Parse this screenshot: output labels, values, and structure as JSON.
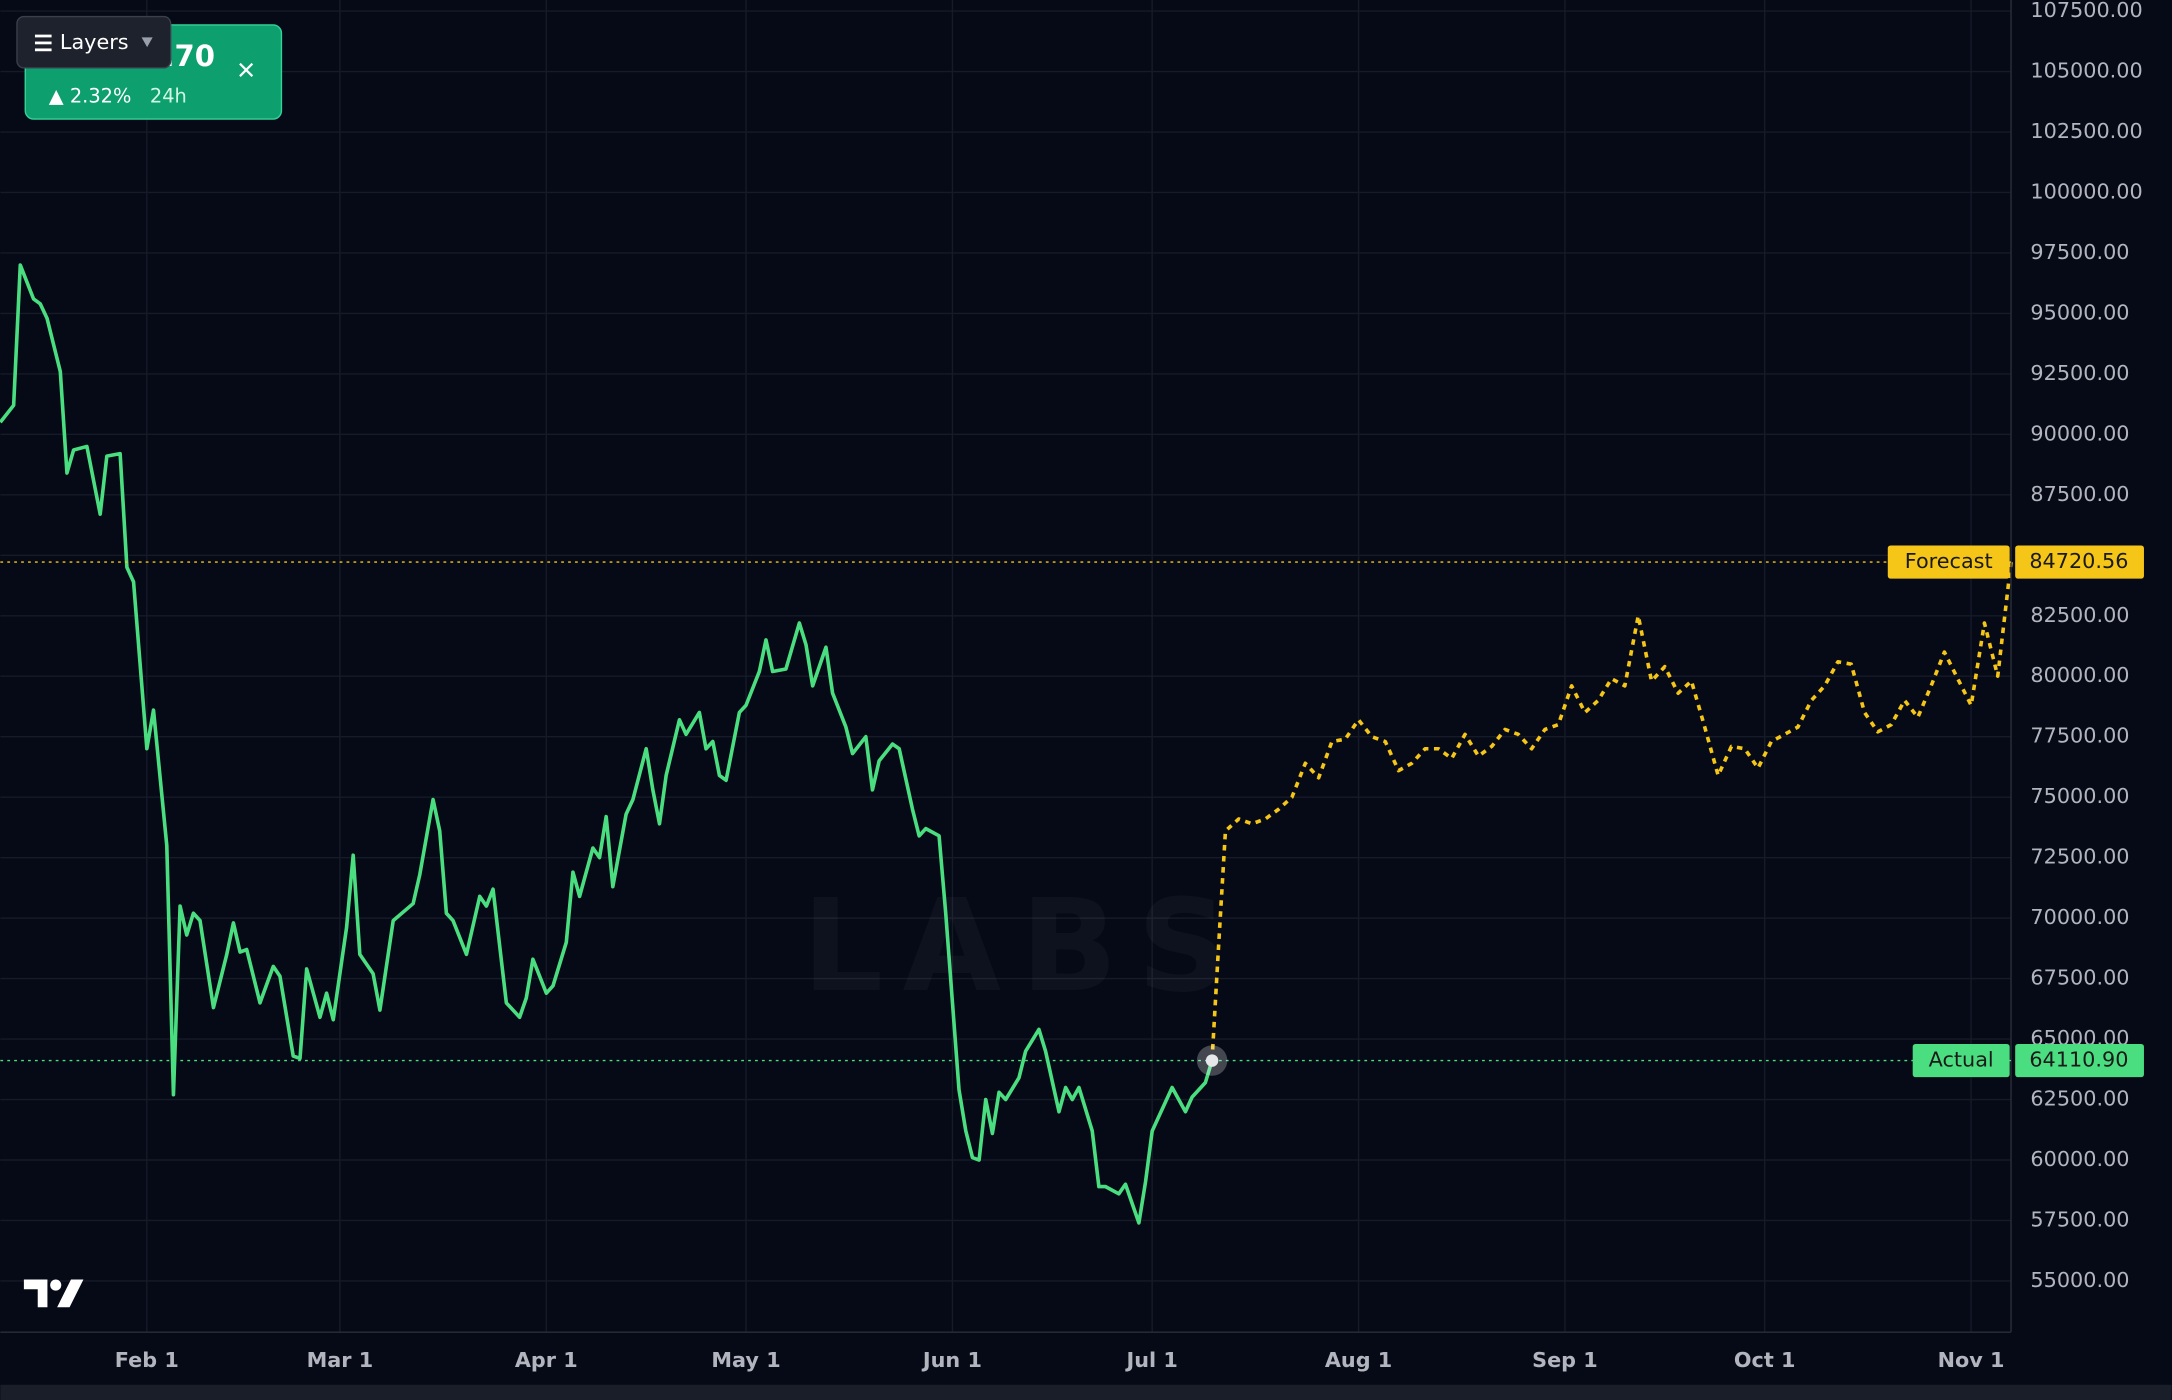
{
  "ui": {
    "layers": "Layers",
    "price": ".70",
    "change": "▲ 2.32%",
    "period": "24h",
    "watermark": "LABS"
  },
  "chart_data": {
    "type": "line",
    "xlim": [
      "Jan 10",
      "Nov 7"
    ],
    "xticks": [
      "Feb 1",
      "Mar 1",
      "Apr 1",
      "May 1",
      "Jun 1",
      "Jul 1",
      "Aug 1",
      "Sep 1",
      "Oct 1",
      "Nov 1"
    ],
    "ylim": [
      52883,
      107958
    ],
    "yticks": [
      {
        "value": 55000,
        "label": "55000.00"
      },
      {
        "value": 57500,
        "label": "57500.00"
      },
      {
        "value": 60000,
        "label": "60000.00"
      },
      {
        "value": 62500,
        "label": "62500.00"
      },
      {
        "value": 65000,
        "label": "65000.00"
      },
      {
        "value": 67500,
        "label": "67500.00"
      },
      {
        "value": 70000,
        "label": "70000.00"
      },
      {
        "value": 72500,
        "label": "72500.00"
      },
      {
        "value": 75000,
        "label": "75000.00"
      },
      {
        "value": 77500,
        "label": "77500.00"
      },
      {
        "value": 80000,
        "label": "80000.00"
      },
      {
        "value": 82500,
        "label": "82500.00"
      },
      {
        "value": 85000,
        "label": "85000.00"
      },
      {
        "value": 87500,
        "label": "87500.00"
      },
      {
        "value": 90000,
        "label": "90000.00"
      },
      {
        "value": 92500,
        "label": "92500.00"
      },
      {
        "value": 95000,
        "label": "95000.00"
      },
      {
        "value": 97500,
        "label": "97500.00"
      },
      {
        "value": 100000,
        "label": "100000.00"
      },
      {
        "value": 102500,
        "label": "102500.00"
      },
      {
        "value": 105000,
        "label": "105000.00"
      },
      {
        "value": 107500,
        "label": "107500.00"
      }
    ],
    "grid": true,
    "series": [
      {
        "name": "Actual",
        "color": "#4ade80",
        "dashed": false,
        "last_label": "64110.90",
        "x": [
          "Jan 10",
          "Jan 12",
          "Jan 13",
          "Jan 15",
          "Jan 16",
          "Jan 17",
          "Jan 19",
          "Jan 20",
          "Jan 21",
          "Jan 23",
          "Jan 25",
          "Jan 26",
          "Jan 28",
          "Jan 29",
          "Jan 30",
          "Feb 1",
          "Feb 2",
          "Feb 4",
          "Feb 5",
          "Feb 6",
          "Feb 7",
          "Feb 8",
          "Feb 9",
          "Feb 11",
          "Feb 13",
          "Feb 14",
          "Feb 15",
          "Feb 16",
          "Feb 18",
          "Feb 20",
          "Feb 21",
          "Feb 23",
          "Feb 24",
          "Feb 25",
          "Feb 27",
          "Feb 28",
          "Feb 29",
          "Mar 2",
          "Mar 3",
          "Mar 4",
          "Mar 6",
          "Mar 7",
          "Mar 9",
          "Mar 12",
          "Mar 13",
          "Mar 15",
          "Mar 16",
          "Mar 17",
          "Mar 18",
          "Mar 20",
          "Mar 22",
          "Mar 23",
          "Mar 24",
          "Mar 26",
          "Mar 28",
          "Mar 29",
          "Mar 30",
          "Apr 1",
          "Apr 2",
          "Apr 4",
          "Apr 5",
          "Apr 6",
          "Apr 8",
          "Apr 9",
          "Apr 10",
          "Apr 11",
          "Apr 13",
          "Apr 14",
          "Apr 16",
          "Apr 17",
          "Apr 18",
          "Apr 19",
          "Apr 21",
          "Apr 22",
          "Apr 24",
          "Apr 25",
          "Apr 26",
          "Apr 27",
          "Apr 28",
          "Apr 30",
          "May 1",
          "May 3",
          "May 4",
          "May 5",
          "May 7",
          "May 9",
          "May 10",
          "May 11",
          "May 13",
          "May 14",
          "May 16",
          "May 17",
          "May 19",
          "May 20",
          "May 21",
          "May 23",
          "May 24",
          "May 26",
          "May 27",
          "May 28",
          "May 30",
          "May 31",
          "Jun 2",
          "Jun 3",
          "Jun 4",
          "Jun 5",
          "Jun 6",
          "Jun 7",
          "Jun 8",
          "Jun 9",
          "Jun 11",
          "Jun 12",
          "Jun 14",
          "Jun 15",
          "Jun 17",
          "Jun 18",
          "Jun 19",
          "Jun 20",
          "Jun 22",
          "Jun 23",
          "Jun 24",
          "Jun 26",
          "Jun 27",
          "Jun 29",
          "Jun 30",
          "Jul 1",
          "Jul 3",
          "Jul 4",
          "Jul 6",
          "Jul 7",
          "Jul 9",
          "Jul 10"
        ],
        "values": [
          90500,
          91200,
          97000,
          95600,
          95400,
          94800,
          92600,
          88400,
          89350,
          89500,
          86700,
          89100,
          89200,
          84500,
          83900,
          77000,
          78600,
          73000,
          62700,
          70500,
          69300,
          70200,
          69900,
          66300,
          68500,
          69800,
          68600,
          68700,
          66500,
          68000,
          67600,
          64300,
          64200,
          67900,
          65900,
          66900,
          65800,
          69600,
          72600,
          68500,
          67700,
          66200,
          69900,
          70600,
          71800,
          74900,
          73600,
          70200,
          69900,
          68500,
          70900,
          70500,
          71200,
          66500,
          65900,
          66700,
          68300,
          66900,
          67200,
          69000,
          71900,
          70900,
          72900,
          72500,
          74200,
          71300,
          74300,
          74900,
          77000,
          75300,
          73900,
          75900,
          78200,
          77600,
          78500,
          77000,
          77300,
          75900,
          75700,
          78500,
          78800,
          80200,
          81500,
          80200,
          80300,
          82200,
          81300,
          79600,
          81200,
          79300,
          77900,
          76800,
          77500,
          75300,
          76500,
          77200,
          77000,
          74500,
          73400,
          73700,
          73400,
          70200,
          62900,
          61200,
          60100,
          60000,
          62500,
          61100,
          62800,
          62500,
          63400,
          64500,
          65400,
          64500,
          62000,
          63000,
          62500,
          63000,
          61200,
          58900,
          58900,
          58600,
          59000,
          57400,
          59100,
          61200,
          62400,
          63000,
          62000,
          62600,
          63200,
          64110.9
        ]
      },
      {
        "name": "Forecast",
        "color": "#f5c518",
        "dashed": true,
        "last_label": "84720.56",
        "x": [
          "Jul 10",
          "Jul 11",
          "Jul 12",
          "Jul 14",
          "Jul 16",
          "Jul 18",
          "Jul 20",
          "Jul 22",
          "Jul 24",
          "Jul 26",
          "Jul 28",
          "Jul 30",
          "Aug 1",
          "Aug 3",
          "Aug 5",
          "Aug 7",
          "Aug 9",
          "Aug 11",
          "Aug 13",
          "Aug 15",
          "Aug 17",
          "Aug 19",
          "Aug 21",
          "Aug 23",
          "Aug 25",
          "Aug 27",
          "Aug 29",
          "Aug 31",
          "Sep 2",
          "Sep 4",
          "Sep 6",
          "Sep 8",
          "Sep 10",
          "Sep 12",
          "Sep 14",
          "Sep 16",
          "Sep 18",
          "Sep 20",
          "Sep 22",
          "Sep 24",
          "Sep 26",
          "Sep 28",
          "Sep 30",
          "Oct 2",
          "Oct 4",
          "Oct 6",
          "Oct 8",
          "Oct 10",
          "Oct 12",
          "Oct 14",
          "Oct 16",
          "Oct 18",
          "Oct 20",
          "Oct 22",
          "Oct 24",
          "Oct 26",
          "Oct 28",
          "Oct 30",
          "Nov 1",
          "Nov 3",
          "Nov 5",
          "Nov 7"
        ],
        "values": [
          64110.9,
          69000,
          73600,
          74100,
          73900,
          74100,
          74500,
          75000,
          76400,
          75800,
          77300,
          77400,
          78200,
          77500,
          77300,
          76100,
          76400,
          77000,
          77000,
          76600,
          77600,
          76700,
          77100,
          77800,
          77600,
          77000,
          77800,
          78000,
          79600,
          78500,
          79000,
          79900,
          79600,
          82500,
          79800,
          80400,
          79300,
          79800,
          77900,
          75900,
          77100,
          77000,
          76200,
          77300,
          77600,
          77900,
          79000,
          79600,
          80600,
          80500,
          78500,
          77700,
          78000,
          79000,
          78300,
          79600,
          81000,
          79900,
          78800,
          82200,
          80000,
          84720.56
        ]
      }
    ]
  }
}
